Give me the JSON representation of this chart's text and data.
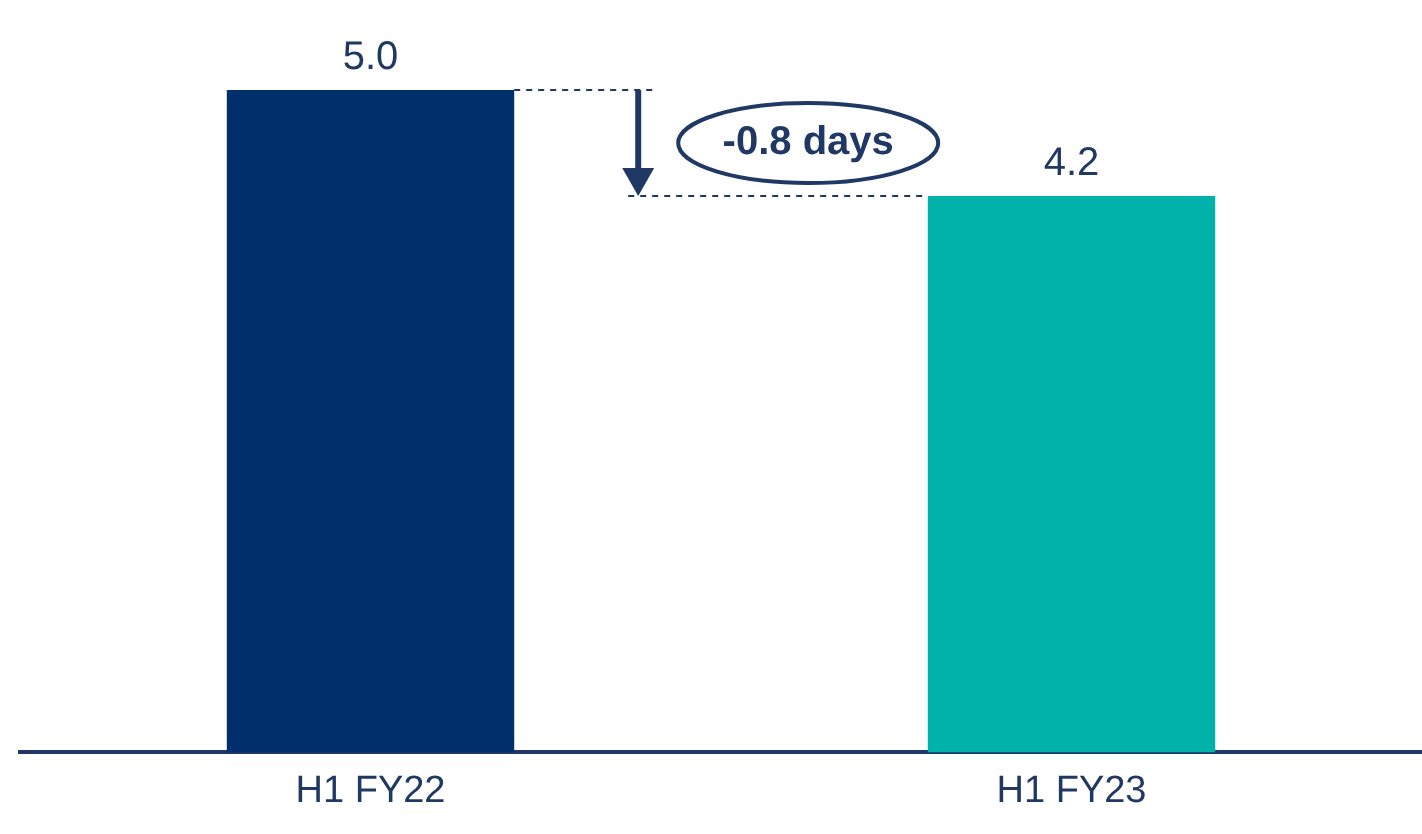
{
  "chart_data": {
    "type": "bar",
    "categories": [
      "H1 FY22",
      "H1 FY23"
    ],
    "values": [
      5.0,
      4.2
    ],
    "colors": [
      "#002f6c",
      "#00b2a9"
    ],
    "value_labels": [
      "5.0",
      "4.2"
    ],
    "annotations": [
      "-0.8 days"
    ],
    "grid": false,
    "legend": false
  }
}
